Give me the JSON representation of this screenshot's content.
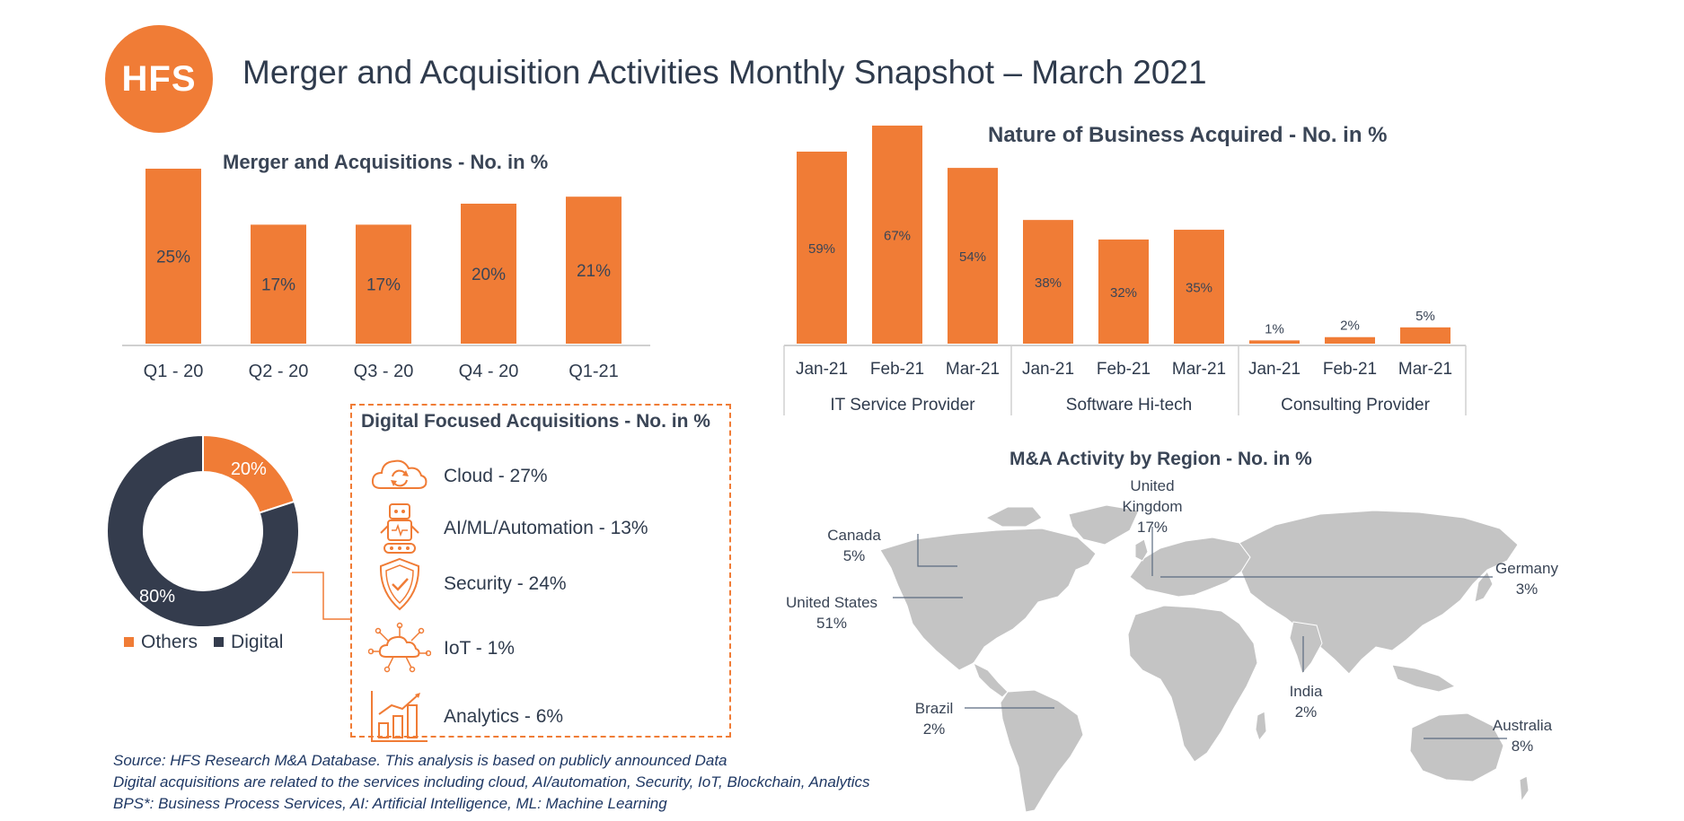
{
  "header": {
    "logo_text": "HFS",
    "title": "Merger and Acquisition Activities Monthly Snapshot – March 2021"
  },
  "colors": {
    "orange": "#f07c36",
    "navy": "#343c4d",
    "map_gray": "#c4c4c4"
  },
  "chart_data": [
    {
      "id": "ma-quarterly",
      "type": "bar",
      "title": "Merger and Acquisitions  - No. in %",
      "categories": [
        "Q1 - 20",
        "Q2 - 20",
        "Q3 - 20",
        "Q4 - 20",
        "Q1-21"
      ],
      "values": [
        25,
        17,
        17,
        20,
        21
      ],
      "data_labels": [
        "25%",
        "17%",
        "17%",
        "20%",
        "21%"
      ],
      "ylim": [
        0,
        25
      ]
    },
    {
      "id": "nature-of-business",
      "type": "bar",
      "title": "Nature of Business Acquired - No. in %",
      "groups": [
        {
          "name": "IT Service Provider",
          "categories": [
            "Jan-21",
            "Feb-21",
            "Mar-21"
          ],
          "values": [
            59,
            67,
            54
          ],
          "data_labels": [
            "59%",
            "67%",
            "54%"
          ]
        },
        {
          "name": "Software Hi-tech",
          "categories": [
            "Jan-21",
            "Feb-21",
            "Mar-21"
          ],
          "values": [
            38,
            32,
            35
          ],
          "data_labels": [
            "38%",
            "32%",
            "35%"
          ]
        },
        {
          "name": "Consulting Provider",
          "categories": [
            "Jan-21",
            "Feb-21",
            "Mar-21"
          ],
          "values": [
            1,
            2,
            5
          ],
          "data_labels": [
            "1%",
            "2%",
            "5%"
          ]
        }
      ],
      "ylim": [
        0,
        67
      ]
    },
    {
      "id": "digital-share",
      "type": "pie",
      "labels": [
        "Others",
        "Digital"
      ],
      "values": [
        20,
        80
      ],
      "data_labels": [
        "20%",
        "80%"
      ],
      "colors": [
        "#f07c36",
        "#343c4d"
      ],
      "legend": "bottom"
    },
    {
      "id": "region",
      "type": "map",
      "title": "M&A Activity by Region - No. in %",
      "regions": [
        {
          "name": "Canada",
          "value": "5%"
        },
        {
          "name": "United States",
          "value": "51%"
        },
        {
          "name": "Brazil",
          "value": "2%"
        },
        {
          "name": "United Kingdom",
          "value": "17%"
        },
        {
          "name": "Germany",
          "value": "3%"
        },
        {
          "name": "India",
          "value": "2%"
        },
        {
          "name": "Australia",
          "value": "8%"
        }
      ]
    }
  ],
  "digital_focused": {
    "title": "Digital Focused Acquisitions - No. in %",
    "items": [
      {
        "label": "Cloud - 27%",
        "icon": "cloud-sync-icon"
      },
      {
        "label": "AI/ML/Automation - 13%",
        "icon": "robot-icon"
      },
      {
        "label": "Security - 24%",
        "icon": "shield-check-icon"
      },
      {
        "label": "IoT - 1%",
        "icon": "iot-cloud-icon"
      },
      {
        "label": "Analytics - 6%",
        "icon": "bar-chart-icon"
      }
    ]
  },
  "sources": [
    "Source: HFS Research M&A Database. This analysis is based on publicly announced Data",
    "Digital acquisitions are related to the services including cloud, AI/automation, Security, IoT, Blockchain, Analytics",
    "BPS*: Business Process Services, AI: Artificial Intelligence, ML: Machine Learning"
  ]
}
